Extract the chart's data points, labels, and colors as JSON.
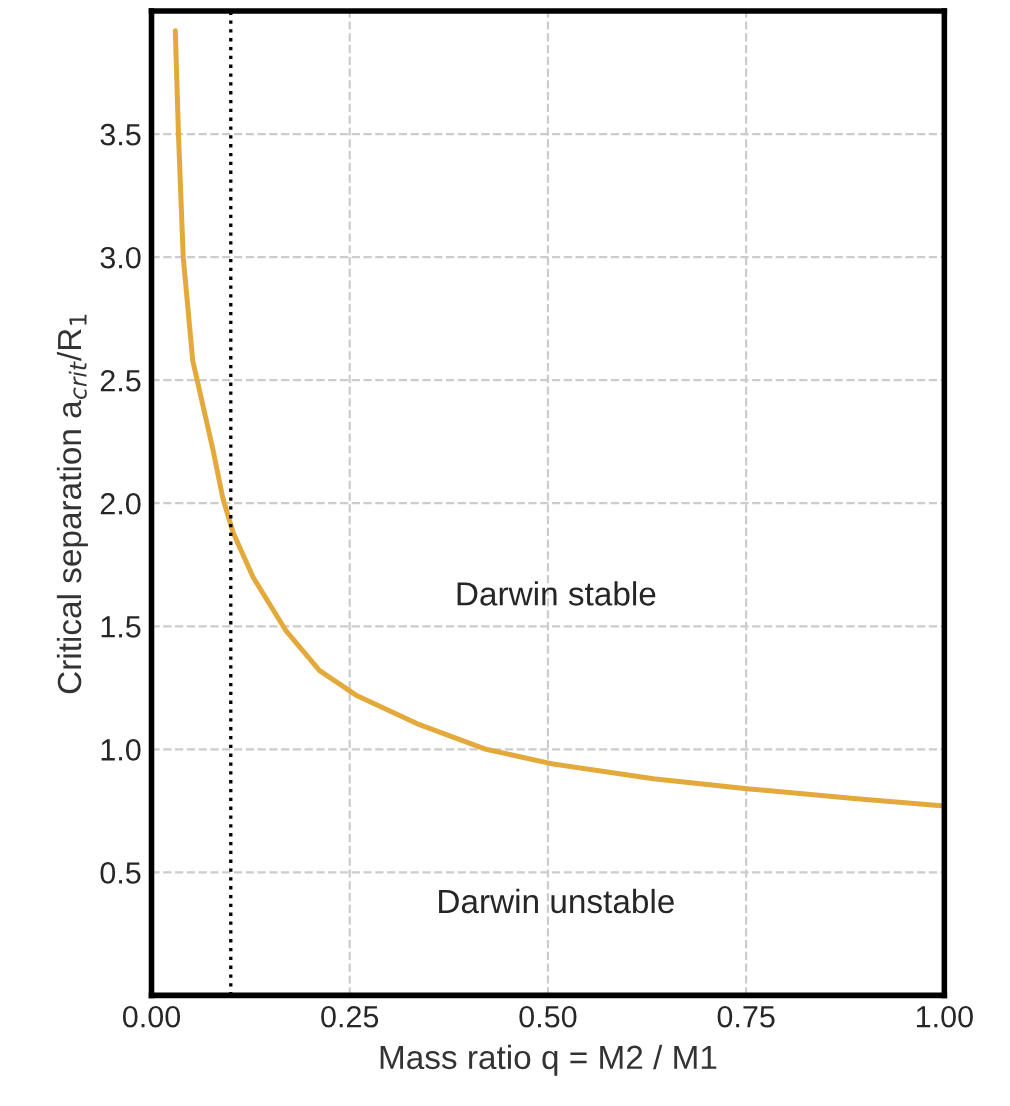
{
  "chart_data": {
    "type": "line",
    "xlabel": "Mass ratio q = M2 / M1",
    "ylabel": "Critical separation a$_{crit}$/R$_{1}$",
    "series": [
      {
        "color": "#e3a93b",
        "x": [
          0.03,
          0.034,
          0.04,
          0.052,
          0.078,
          0.09,
          0.103,
          0.128,
          0.17,
          0.212,
          0.258,
          0.338,
          0.422,
          0.507,
          0.633,
          0.751,
          0.886,
          1.0
        ],
        "values": [
          3.92,
          3.5,
          3.0,
          2.58,
          2.21,
          2.02,
          1.88,
          1.7,
          1.48,
          1.32,
          1.22,
          1.1,
          1.0,
          0.94,
          0.88,
          0.84,
          0.8,
          0.77
        ]
      }
    ],
    "xlim": [
      0,
      1
    ],
    "xticks": [
      {
        "value": 0,
        "label": "0.00"
      },
      {
        "value": 0.25,
        "label": "0.25"
      },
      {
        "value": 0.5,
        "label": "0.50"
      },
      {
        "value": 0.75,
        "label": "0.75"
      },
      {
        "value": 1,
        "label": "1.00"
      }
    ],
    "ylim": [
      0,
      4
    ],
    "yticks": [
      0.5,
      {
        "value": 1,
        "label": "1.0"
      },
      1.5,
      {
        "value": 2,
        "label": "2.0"
      },
      2.5,
      {
        "value": 3,
        "label": "3.0"
      },
      3.5
    ],
    "ref_lines": [
      {
        "axis": "x",
        "value": 0.1,
        "color": "#000000",
        "line_style": "dotted"
      }
    ],
    "annotations": [
      "Darwin stable",
      "Darwin unstable"
    ],
    "grid": true,
    "legend": false,
    "marker": "none",
    "line_style": "solid"
  }
}
